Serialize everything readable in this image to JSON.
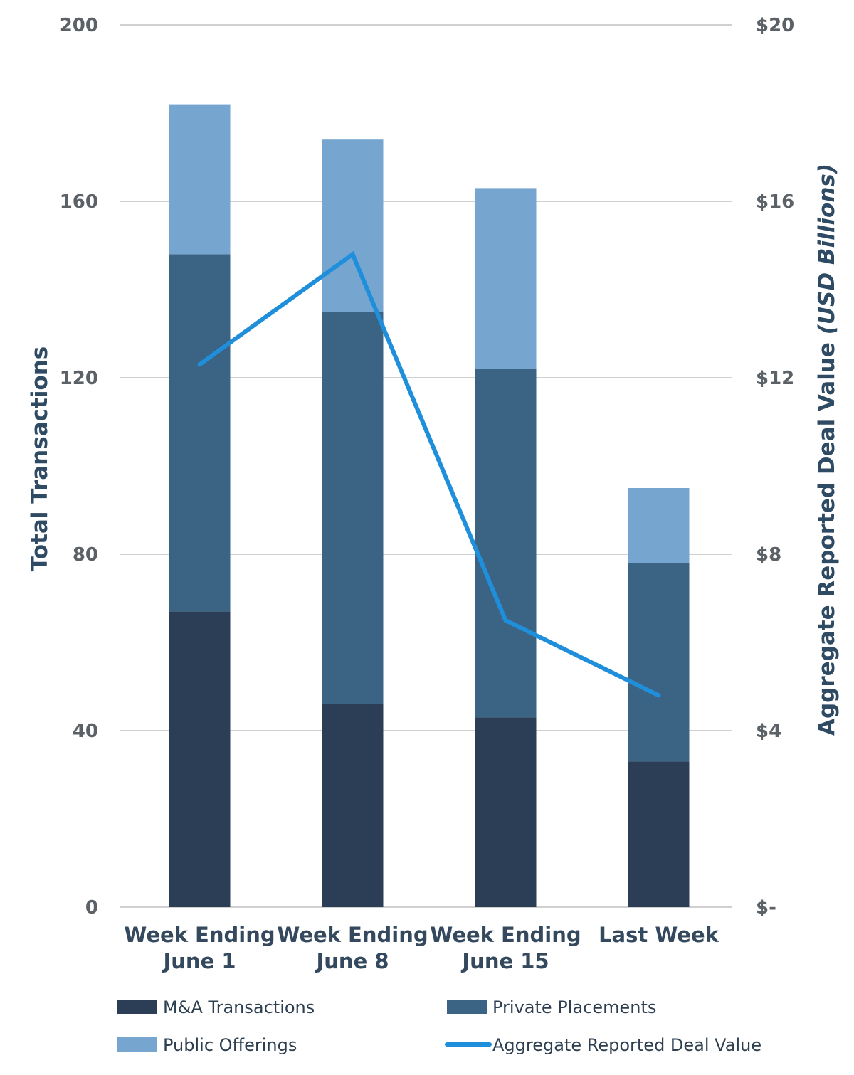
{
  "chart_data": {
    "type": "bar",
    "stacked": true,
    "categories": [
      [
        "Week Ending",
        "June 1"
      ],
      [
        "Week Ending",
        "June 8"
      ],
      [
        "Week Ending",
        "June 15"
      ],
      [
        "Last Week"
      ]
    ],
    "series": [
      {
        "name": "M&A Transactions",
        "axis": "left",
        "type": "bar",
        "color": "#2c3e55",
        "values": [
          67,
          46,
          43,
          33
        ]
      },
      {
        "name": "Private Placements",
        "axis": "left",
        "type": "bar",
        "color": "#3b6384",
        "values": [
          81,
          89,
          79,
          45
        ]
      },
      {
        "name": "Public Offerings",
        "axis": "left",
        "type": "bar",
        "color": "#76a6d0",
        "values": [
          34,
          39,
          41,
          17
        ]
      },
      {
        "name": "Aggregate Reported Deal Value",
        "axis": "right",
        "type": "line",
        "color": "#1f8fdc",
        "values": [
          12.3,
          14.8,
          6.5,
          4.8
        ]
      }
    ],
    "y_left": {
      "label": "Total Transactions",
      "ylim": [
        0,
        200
      ],
      "ticks": [
        0,
        40,
        80,
        120,
        160,
        200
      ],
      "tick_labels": [
        "0",
        "40",
        "80",
        "120",
        "160",
        "200"
      ]
    },
    "y_right": {
      "label": "Aggregate Reported Deal Value",
      "label_unit": "(USD Billions)",
      "ylim": [
        0,
        20
      ],
      "ticks": [
        0,
        4,
        8,
        12,
        16,
        20
      ],
      "tick_labels": [
        "$-",
        "$4",
        "$8",
        "$12",
        "$16",
        "$20"
      ]
    },
    "grid": true,
    "legend": {
      "placement": "bottom",
      "entries": [
        "M&A Transactions",
        "Private Placements",
        "Public Offerings",
        "Aggregate Reported Deal Value"
      ]
    },
    "colors": {
      "grid": "#b5b5b5",
      "tick_text": "#5b6166",
      "category_text": "#34495e",
      "axis_title": "#2f4a63"
    }
  }
}
